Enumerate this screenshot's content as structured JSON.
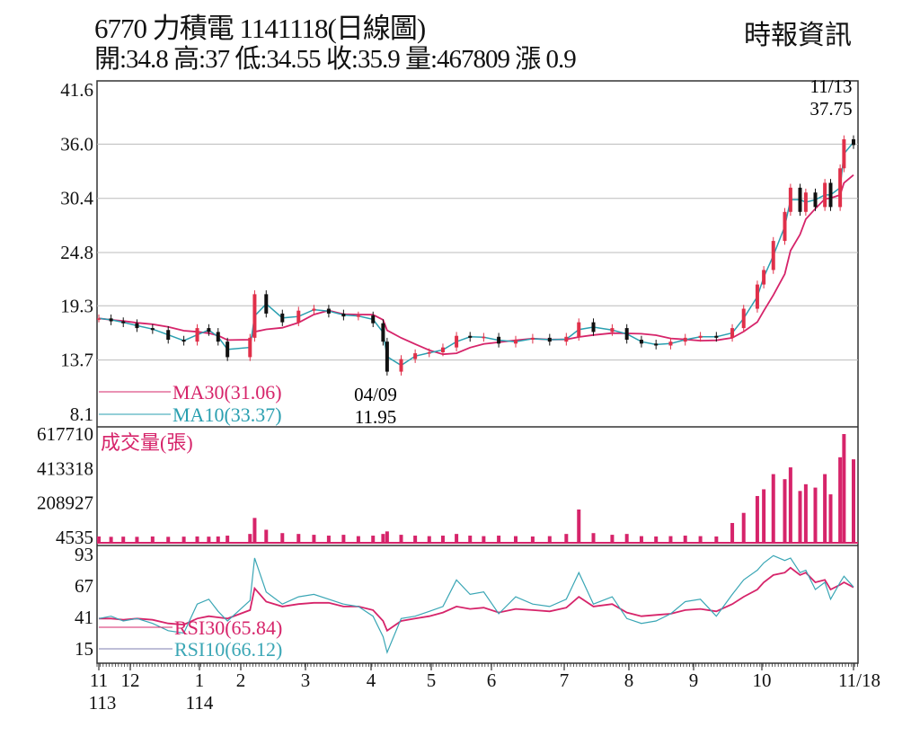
{
  "header": {
    "title": "6770  力積電 1141118(日線圖)",
    "quote": "開:34.8 高:37 低:34.55 收:35.9 量:467809 漲 0.9",
    "source": "時報資訊"
  },
  "colors": {
    "up": "#e0304a",
    "down": "#111111",
    "ma30": "#d6246a",
    "ma10": "#2a9fb0",
    "volume": "#d6246a",
    "rsi30": "#d6246a",
    "rsi10": "#3aa6b5",
    "grid": "#bbbbbb"
  },
  "chart_data": [
    {
      "type": "candlestick",
      "price_ticks": [
        "41.6",
        "36.0",
        "30.4",
        "24.8",
        "19.3",
        "13.7",
        "8.1"
      ],
      "ylim": [
        8.1,
        41.6
      ],
      "grid": true,
      "legend": [
        {
          "label": "MA30(31.06)",
          "series": "ma30"
        },
        {
          "label": "MA10(33.37)",
          "series": "ma10"
        }
      ],
      "annotations": [
        {
          "date": "11/13",
          "value": "37.75",
          "kind": "high"
        },
        {
          "date": "04/09",
          "value": "11.95",
          "kind": "low"
        }
      ],
      "x": [
        "2024-11-13",
        "2024-11-20",
        "2024-11-27",
        "2024-12-04",
        "2024-12-11",
        "2024-12-18",
        "2024-12-25",
        "2024-12-31",
        "2025-01-08",
        "2025-01-15",
        "2025-01-22",
        "2025-02-05",
        "2025-02-07",
        "2025-02-12",
        "2025-02-19",
        "2025-02-26",
        "2025-03-05",
        "2025-03-12",
        "2025-03-19",
        "2025-03-26",
        "2025-04-02",
        "2025-04-07",
        "2025-04-09",
        "2025-04-16",
        "2025-04-23",
        "2025-04-30",
        "2025-05-07",
        "2025-05-14",
        "2025-05-21",
        "2025-05-28",
        "2025-06-04",
        "2025-06-11",
        "2025-06-18",
        "2025-06-25",
        "2025-07-02",
        "2025-07-08",
        "2025-07-15",
        "2025-07-24",
        "2025-07-31",
        "2025-08-07",
        "2025-08-14",
        "2025-08-21",
        "2025-08-28",
        "2025-09-04",
        "2025-09-11",
        "2025-09-18",
        "2025-09-23",
        "2025-09-29",
        "2025-10-02",
        "2025-10-07",
        "2025-10-13",
        "2025-10-16",
        "2025-10-21",
        "2025-10-24",
        "2025-10-29",
        "2025-11-03",
        "2025-11-06",
        "2025-11-11",
        "2025-11-13",
        "2025-11-18"
      ],
      "close": [
        18.0,
        17.7,
        17.5,
        17.0,
        16.8,
        15.8,
        15.6,
        17.0,
        16.6,
        15.6,
        14.0,
        16.0,
        20.5,
        18.5,
        17.6,
        18.8,
        19.0,
        18.5,
        18.2,
        18.3,
        17.5,
        15.6,
        12.5,
        13.8,
        14.4,
        14.5,
        15.0,
        16.2,
        16.0,
        16.1,
        15.4,
        15.8,
        16.0,
        15.6,
        16.1,
        17.6,
        16.6,
        17.0,
        15.8,
        15.4,
        15.2,
        15.6,
        16.0,
        16.2,
        16.0,
        17.0,
        19.0,
        21.5,
        23.0,
        26.0,
        29.0,
        31.5,
        29.0,
        31.0,
        29.5,
        32.0,
        29.5,
        33.5,
        36.5,
        35.9
      ]
    },
    {
      "type": "bar",
      "title": "成交量(張)",
      "ticks": [
        "617710",
        "413318",
        "208927",
        "4535"
      ],
      "ylim": [
        4535,
        617710
      ],
      "values": [
        10000,
        8000,
        9000,
        8000,
        10000,
        8000,
        9000,
        10000,
        9000,
        10000,
        15000,
        25000,
        120000,
        50000,
        30000,
        25000,
        20000,
        15000,
        20000,
        12000,
        15000,
        25000,
        40000,
        20000,
        15000,
        12000,
        15000,
        25000,
        15000,
        12000,
        15000,
        12000,
        10000,
        12000,
        25000,
        170000,
        30000,
        20000,
        25000,
        12000,
        10000,
        12000,
        15000,
        12000,
        10000,
        90000,
        150000,
        250000,
        290000,
        380000,
        350000,
        420000,
        280000,
        320000,
        300000,
        380000,
        260000,
        480000,
        617710,
        467809
      ]
    },
    {
      "type": "line",
      "ticks": [
        "93",
        "67",
        "41",
        "15"
      ],
      "ylim": [
        15,
        93
      ],
      "series": [
        {
          "name": "RSI30(65.84)",
          "key": "rsi30",
          "values": [
            40,
            40,
            39,
            40,
            39,
            36,
            35,
            40,
            42,
            41,
            40,
            47,
            65,
            54,
            50,
            52,
            53,
            53,
            50,
            50,
            47,
            38,
            30,
            38,
            40,
            42,
            45,
            50,
            48,
            49,
            45,
            48,
            47,
            46,
            49,
            58,
            50,
            52,
            45,
            42,
            43,
            44,
            47,
            48,
            46,
            52,
            58,
            64,
            70,
            76,
            78,
            82,
            76,
            78,
            70,
            72,
            64,
            68,
            70,
            65.84
          ]
        },
        {
          "name": "RSI10(66.12)",
          "key": "rsi10",
          "values": [
            40,
            42,
            38,
            40,
            36,
            30,
            28,
            52,
            56,
            46,
            38,
            55,
            90,
            62,
            52,
            58,
            60,
            56,
            52,
            50,
            42,
            25,
            12,
            40,
            42,
            46,
            50,
            72,
            60,
            62,
            44,
            58,
            52,
            50,
            56,
            78,
            52,
            58,
            40,
            36,
            38,
            44,
            54,
            56,
            42,
            60,
            72,
            80,
            86,
            92,
            88,
            90,
            78,
            80,
            64,
            70,
            56,
            70,
            75,
            66.12
          ]
        }
      ]
    }
  ],
  "x_axis": {
    "months": [
      {
        "label": "11",
        "date": "2024-11-13"
      },
      {
        "label": "12",
        "date": "2024-12-01"
      },
      {
        "label": "1",
        "date": "2025-01-01"
      },
      {
        "label": "2",
        "date": "2025-02-01"
      },
      {
        "label": "3",
        "date": "2025-03-01"
      },
      {
        "label": "4",
        "date": "2025-04-01"
      },
      {
        "label": "5",
        "date": "2025-05-01"
      },
      {
        "label": "6",
        "date": "2025-06-01"
      },
      {
        "label": "7",
        "date": "2025-07-01"
      },
      {
        "label": "8",
        "date": "2025-08-01"
      },
      {
        "label": "9",
        "date": "2025-09-01"
      },
      {
        "label": "10",
        "date": "2025-10-01"
      },
      {
        "label": "11/18",
        "date": "2025-11-18"
      }
    ],
    "years": [
      {
        "label": "113",
        "date": "2024-11-13"
      },
      {
        "label": "114",
        "date": "2025-01-01"
      }
    ]
  }
}
